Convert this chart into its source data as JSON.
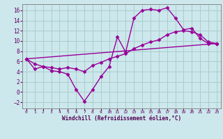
{
  "xlabel": "Windchill (Refroidissement éolien,°C)",
  "background_color": "#cce8ec",
  "grid_color": "#aacccc",
  "line_color": "#990099",
  "xlim": [
    -0.5,
    23.5
  ],
  "ylim": [
    -3.2,
    17.2
  ],
  "yticks": [
    -2,
    0,
    2,
    4,
    6,
    8,
    10,
    12,
    14,
    16
  ],
  "xticks": [
    0,
    1,
    2,
    3,
    4,
    5,
    6,
    7,
    8,
    9,
    10,
    11,
    12,
    13,
    14,
    15,
    16,
    17,
    18,
    19,
    20,
    21,
    22,
    23
  ],
  "series1_x": [
    0,
    1,
    2,
    3,
    4,
    5,
    6,
    7,
    8,
    9,
    10,
    11,
    12,
    13,
    14,
    15,
    16,
    17,
    18,
    19,
    20,
    21,
    22,
    23
  ],
  "series1_y": [
    6.5,
    4.5,
    5.0,
    4.2,
    4.0,
    3.5,
    0.5,
    -1.8,
    0.5,
    3.0,
    5.0,
    10.8,
    7.8,
    14.5,
    16.0,
    16.2,
    16.0,
    16.5,
    14.5,
    12.2,
    12.5,
    10.5,
    9.5,
    9.5
  ],
  "series2_x": [
    0,
    1,
    2,
    3,
    4,
    5,
    6,
    7,
    8,
    9,
    10,
    11,
    12,
    13,
    14,
    15,
    16,
    17,
    18,
    19,
    20,
    21,
    22,
    23
  ],
  "series2_y": [
    6.5,
    5.5,
    5.0,
    4.8,
    4.5,
    4.8,
    4.5,
    4.0,
    5.2,
    5.8,
    6.5,
    7.0,
    7.5,
    8.5,
    9.2,
    9.8,
    10.2,
    11.2,
    11.8,
    12.0,
    11.8,
    11.2,
    9.8,
    9.5
  ],
  "series3_x": [
    0,
    23
  ],
  "series3_y": [
    6.5,
    9.5
  ],
  "marker": "D",
  "marker_size": 2.5,
  "line_width": 1.0
}
